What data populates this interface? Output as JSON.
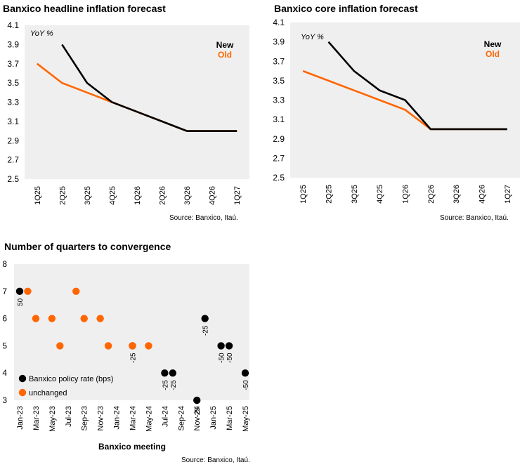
{
  "chart_data": [
    {
      "type": "line",
      "title": "Banxico headline inflation forecast",
      "unit_label": "YoY %",
      "categories": [
        "1Q25",
        "2Q25",
        "3Q25",
        "4Q25",
        "1Q26",
        "2Q26",
        "3Q26",
        "4Q26",
        "1Q27"
      ],
      "ylim": [
        2.5,
        4.1
      ],
      "yticks": [
        "2.5",
        "2.7",
        "2.9",
        "3.1",
        "3.3",
        "3.5",
        "3.7",
        "3.9",
        "4.1"
      ],
      "grid": false,
      "legend_position": "top-right",
      "series": [
        {
          "name": "Old",
          "color": "#ff6600",
          "values": [
            3.7,
            3.5,
            3.4,
            3.3,
            3.2,
            3.1,
            3.0,
            3.0,
            3.0
          ]
        },
        {
          "name": "New",
          "color": "#000000",
          "values": [
            null,
            3.9,
            3.5,
            3.3,
            3.2,
            3.1,
            3.0,
            3.0,
            3.0
          ]
        }
      ],
      "source": "Source: Banxico, Itaú."
    },
    {
      "type": "line",
      "title": "Banxico core inflation forecast",
      "unit_label": "YoY %",
      "categories": [
        "1Q25",
        "2Q25",
        "3Q25",
        "4Q25",
        "1Q26",
        "2Q26",
        "3Q26",
        "4Q26",
        "1Q27"
      ],
      "ylim": [
        2.5,
        4.1
      ],
      "yticks": [
        "2.5",
        "2.7",
        "2.9",
        "3.1",
        "3.3",
        "3.5",
        "3.7",
        "3.9",
        "4.1"
      ],
      "grid": false,
      "legend_position": "top-right",
      "series": [
        {
          "name": "Old",
          "color": "#ff6600",
          "values": [
            3.6,
            3.5,
            3.4,
            3.3,
            3.2,
            3.0,
            3.0,
            3.0,
            3.0
          ]
        },
        {
          "name": "New",
          "color": "#000000",
          "values": [
            null,
            3.9,
            3.6,
            3.4,
            3.3,
            3.0,
            3.0,
            3.0,
            3.0
          ]
        }
      ],
      "source": "Source: Banxico, Itaú."
    },
    {
      "type": "scatter",
      "title": "Number of quarters to convergence",
      "xlabel": "Banxico meeting",
      "categories": [
        "Jan-23",
        "Mar-23",
        "May-23",
        "Jul-23",
        "Sep-23",
        "Nov-23",
        "Jan-24",
        "Mar-24",
        "May-24",
        "Jul-24",
        "Sep-24",
        "Nov-24",
        "Jan-25",
        "Mar-25",
        "May-25"
      ],
      "ylim": [
        3,
        8
      ],
      "yticks": [
        "3",
        "4",
        "5",
        "6",
        "7",
        "8"
      ],
      "grid": false,
      "legend_position": "bottom-left",
      "series": [
        {
          "name": "Banxico policy rate (bps)",
          "color": "#000000",
          "points": [
            {
              "x": "Jan-23",
              "y": 7,
              "label": "50"
            },
            {
              "x": "Mar-24",
              "y": 5,
              "label": "-25"
            },
            {
              "x": "Jul-24",
              "y": 4,
              "label": "-25"
            },
            {
              "x": "Aug-24",
              "y": 4,
              "label": "-25"
            },
            {
              "x": "Nov-24",
              "y": 3,
              "label": "-25"
            },
            {
              "x": "Dec-24",
              "y": 6,
              "label": "-25"
            },
            {
              "x": "Feb-25",
              "y": 5,
              "label": "-50"
            },
            {
              "x": "Mar-25",
              "y": 5,
              "label": "-50"
            },
            {
              "x": "May-25",
              "y": 4,
              "label": "-50"
            }
          ]
        },
        {
          "name": "unchanged",
          "color": "#ff6600",
          "points": [
            {
              "x": "Feb-23",
              "y": 7
            },
            {
              "x": "Mar-23",
              "y": 6
            },
            {
              "x": "May-23",
              "y": 6
            },
            {
              "x": "Jun-23",
              "y": 5
            },
            {
              "x": "Aug-23",
              "y": 7
            },
            {
              "x": "Sep-23",
              "y": 6
            },
            {
              "x": "Nov-23",
              "y": 6
            },
            {
              "x": "Dec-23",
              "y": 5
            },
            {
              "x": "Mar-24",
              "y": 5
            },
            {
              "x": "May-24",
              "y": 5
            }
          ]
        }
      ],
      "source": "Source: Banxico, Itaú."
    }
  ]
}
